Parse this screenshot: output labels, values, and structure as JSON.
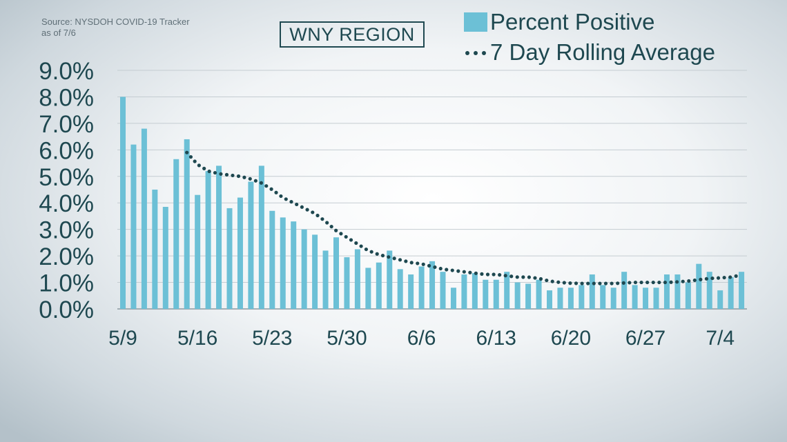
{
  "source": {
    "line1": "Source: NYSDOH COVID-19 Tracker",
    "line2": "as of 7/6"
  },
  "colors": {
    "bar": "#6cc0d6",
    "line": "#1e4850",
    "text": "#1e4850",
    "grid": "#c4ccd1"
  },
  "chart_data": {
    "type": "bar",
    "title": "WNY REGION",
    "dates": [
      "5/9",
      "5/10",
      "5/11",
      "5/12",
      "5/13",
      "5/14",
      "5/15",
      "5/16",
      "5/17",
      "5/18",
      "5/19",
      "5/20",
      "5/21",
      "5/22",
      "5/23",
      "5/24",
      "5/25",
      "5/26",
      "5/27",
      "5/28",
      "5/29",
      "5/30",
      "5/31",
      "6/1",
      "6/2",
      "6/3",
      "6/4",
      "6/5",
      "6/6",
      "6/7",
      "6/8",
      "6/9",
      "6/10",
      "6/11",
      "6/12",
      "6/13",
      "6/14",
      "6/15",
      "6/16",
      "6/17",
      "6/18",
      "6/19",
      "6/20",
      "6/21",
      "6/22",
      "6/23",
      "6/24",
      "6/25",
      "6/26",
      "6/27",
      "6/28",
      "6/29",
      "6/30",
      "7/1",
      "7/2",
      "7/3",
      "7/4",
      "7/5",
      "7/6"
    ],
    "x_tick_labels": [
      "5/9",
      "5/16",
      "5/23",
      "5/30",
      "6/6",
      "6/13",
      "6/20",
      "6/27",
      "7/4"
    ],
    "y_tick_labels": [
      "0.0%",
      "1.0%",
      "2.0%",
      "3.0%",
      "4.0%",
      "5.0%",
      "6.0%",
      "7.0%",
      "8.0%",
      "9.0%"
    ],
    "ylim": [
      0,
      9
    ],
    "grid": true,
    "legend_position": "top-right",
    "series": [
      {
        "name": "Percent Positive",
        "type": "bar",
        "values": [
          8.0,
          6.2,
          6.8,
          4.5,
          3.85,
          5.65,
          6.4,
          4.3,
          5.2,
          5.4,
          3.8,
          4.2,
          4.8,
          5.4,
          3.7,
          3.45,
          3.3,
          3.0,
          2.8,
          2.2,
          2.7,
          1.95,
          2.25,
          1.55,
          1.75,
          2.2,
          1.5,
          1.3,
          1.6,
          1.8,
          1.4,
          0.8,
          1.3,
          1.35,
          1.1,
          1.1,
          1.4,
          1.0,
          0.95,
          1.1,
          0.7,
          0.8,
          0.8,
          0.9,
          1.3,
          0.9,
          0.8,
          1.4,
          0.9,
          0.8,
          0.8,
          1.3,
          1.3,
          1.0,
          1.7,
          1.4,
          0.7,
          1.2,
          1.4
        ]
      },
      {
        "name": "7 Day Rolling Average",
        "type": "line",
        "style": "dotted",
        "values": [
          null,
          null,
          null,
          null,
          null,
          null,
          5.9,
          5.45,
          5.2,
          5.1,
          5.05,
          5.0,
          4.9,
          4.75,
          4.5,
          4.2,
          4.0,
          3.8,
          3.6,
          3.3,
          2.95,
          2.7,
          2.45,
          2.2,
          2.05,
          1.95,
          1.85,
          1.75,
          1.7,
          1.6,
          1.5,
          1.45,
          1.4,
          1.35,
          1.3,
          1.3,
          1.25,
          1.2,
          1.2,
          1.15,
          1.05,
          1.0,
          0.97,
          0.96,
          0.96,
          0.96,
          0.96,
          0.98,
          1.0,
          1.0,
          1.0,
          1.0,
          1.02,
          1.05,
          1.1,
          1.15,
          1.17,
          1.2,
          1.28
        ]
      }
    ]
  }
}
